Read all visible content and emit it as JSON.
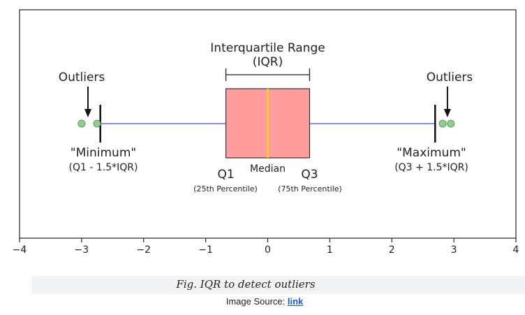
{
  "chart_data": {
    "type": "box",
    "xlim": [
      -4,
      4
    ],
    "x_ticks": [
      -4,
      -3,
      -2,
      -1,
      0,
      1,
      2,
      3,
      4
    ],
    "x_tick_labels": [
      "−4",
      "−3",
      "−2",
      "−1",
      "0",
      "1",
      "2",
      "3",
      "4"
    ],
    "box": {
      "q1": -0.6745,
      "median": 0,
      "q3": 0.6745,
      "whisker_low": -2.698,
      "whisker_high": 2.698
    },
    "outliers": [
      -3.0,
      -2.75,
      2.82,
      2.95
    ],
    "colors": {
      "box_fill": "#ff9c9c",
      "box_edge": "#333333",
      "median_line": "#ffe600",
      "whisker_line": "#8f8fe8",
      "outlier": "#8fcf8f",
      "outlier_edge": "#5a9a5a"
    },
    "annotations": {
      "iqr_title_line1": "Interquartile Range",
      "iqr_title_line2": "(IQR)",
      "outliers_left": "Outliers",
      "outliers_right": "Outliers",
      "minimum": "\"Minimum\"",
      "minimum_formula": "(Q1 - 1.5*IQR)",
      "maximum": "\"Maximum\"",
      "maximum_formula": "(Q3 + 1.5*IQR)",
      "q1": "Q1",
      "q3": "Q3",
      "median": "Median",
      "q1_percentile": "(25th Percentile)",
      "q3_percentile": "(75th Percentile)"
    }
  },
  "caption": "Fig. IQR to detect outliers",
  "source": {
    "prefix": "Image Source: ",
    "link_text": "link"
  }
}
